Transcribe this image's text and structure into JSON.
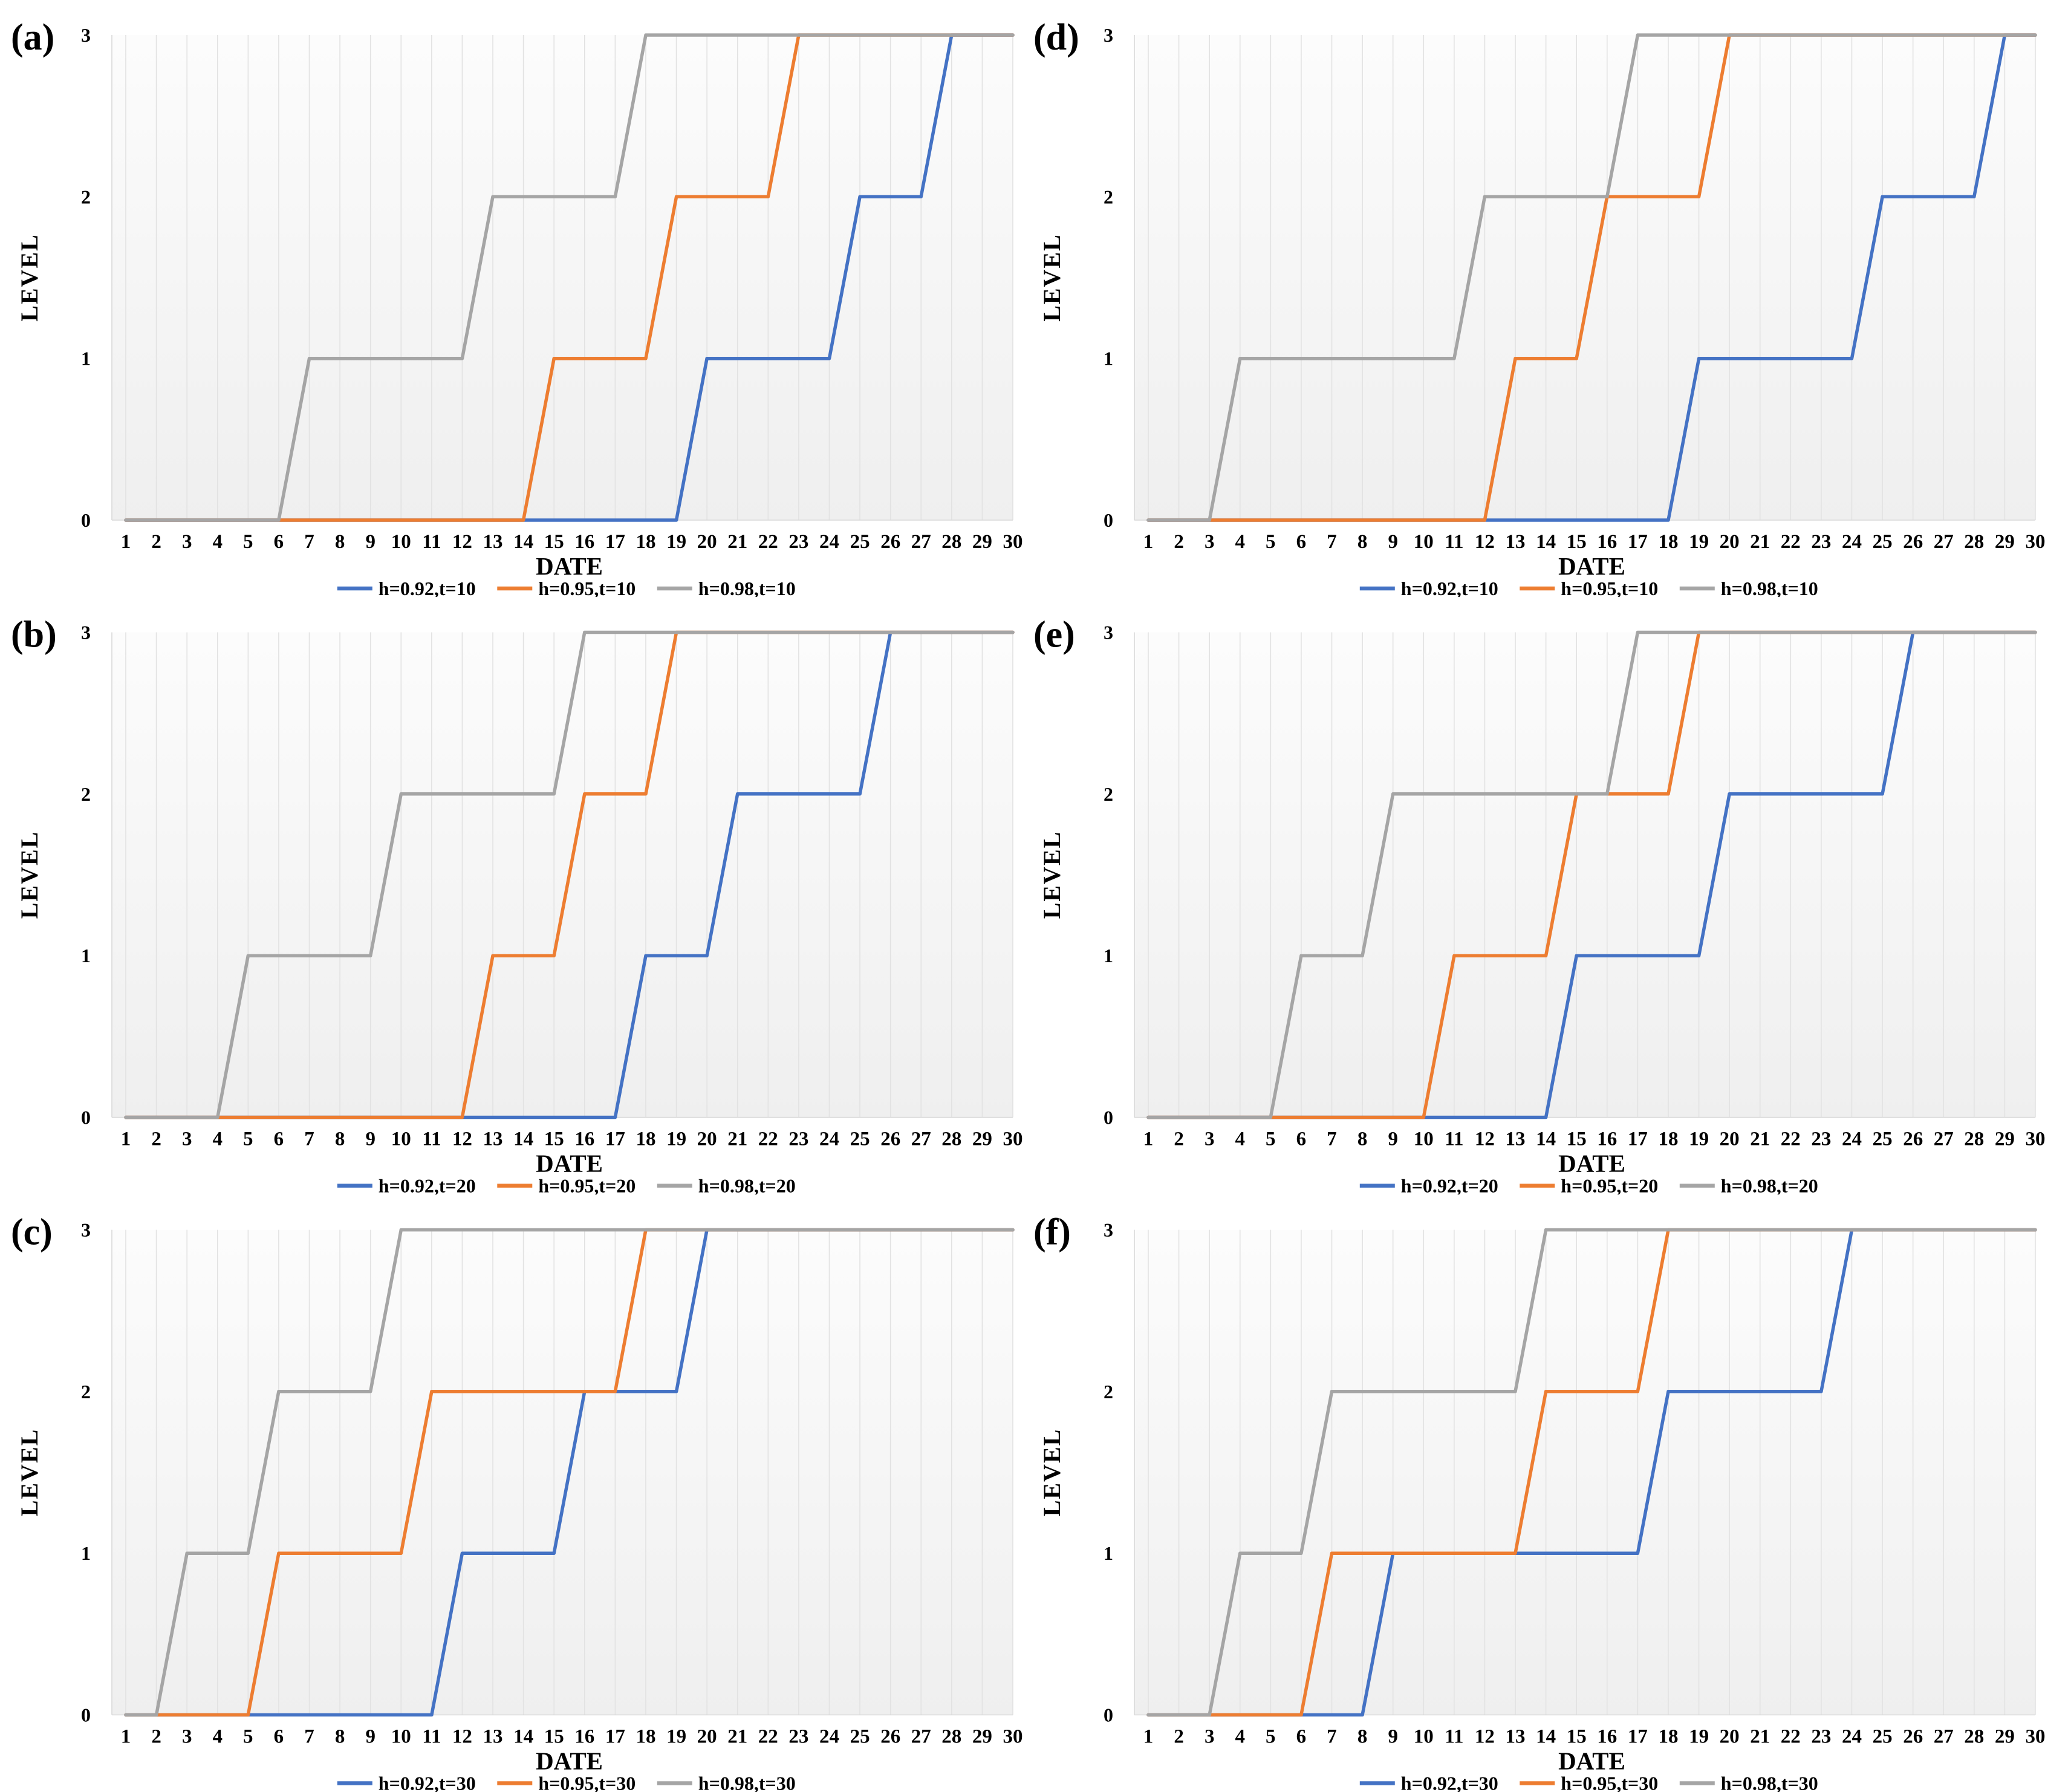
{
  "figure_title": "",
  "styles": {
    "series_colors": {
      "blue": "#4472C4",
      "orange": "#ED7D31",
      "gray": "#A5A5A5"
    },
    "plot_bg_top": "#FCFCFC",
    "plot_bg_bottom": "#EFEFEF",
    "gridline_color": "#E2E2E2",
    "axis_border_color": "#D9D9D9",
    "text_color": "#000000"
  },
  "chart_data": [
    {
      "type": "line",
      "panel_label": "(a)",
      "xlabel": "DATE",
      "ylabel": "LEVEL",
      "x_ticks": [
        1,
        2,
        3,
        4,
        5,
        6,
        7,
        8,
        9,
        10,
        11,
        12,
        13,
        14,
        15,
        16,
        17,
        18,
        19,
        20,
        21,
        22,
        23,
        24,
        25,
        26,
        27,
        28,
        29,
        30
      ],
      "y_ticks": [
        0,
        1,
        2,
        3
      ],
      "xlim": [
        1,
        30
      ],
      "ylim": [
        0,
        3
      ],
      "grid": "vertical",
      "legend_position": "bottom",
      "series": [
        {
          "name": "h=0.92,t=10",
          "color": "#4472C4",
          "points": [
            [
              1,
              0
            ],
            [
              19,
              0
            ],
            [
              20,
              1
            ],
            [
              24,
              1
            ],
            [
              25,
              2
            ],
            [
              27,
              2
            ],
            [
              28,
              3
            ],
            [
              30,
              3
            ]
          ]
        },
        {
          "name": "h=0.95,t=10",
          "color": "#ED7D31",
          "points": [
            [
              1,
              0
            ],
            [
              14,
              0
            ],
            [
              15,
              1
            ],
            [
              18,
              1
            ],
            [
              19,
              2
            ],
            [
              22,
              2
            ],
            [
              23,
              3
            ],
            [
              30,
              3
            ]
          ]
        },
        {
          "name": "h=0.98,t=10",
          "color": "#A5A5A5",
          "points": [
            [
              1,
              0
            ],
            [
              6,
              0
            ],
            [
              7,
              1
            ],
            [
              12,
              1
            ],
            [
              13,
              2
            ],
            [
              17,
              2
            ],
            [
              18,
              3
            ],
            [
              30,
              3
            ]
          ]
        }
      ]
    },
    {
      "type": "line",
      "panel_label": "(b)",
      "xlabel": "DATE",
      "ylabel": "LEVEL",
      "x_ticks": [
        1,
        2,
        3,
        4,
        5,
        6,
        7,
        8,
        9,
        10,
        11,
        12,
        13,
        14,
        15,
        16,
        17,
        18,
        19,
        20,
        21,
        22,
        23,
        24,
        25,
        26,
        27,
        28,
        29,
        30
      ],
      "y_ticks": [
        0,
        1,
        2,
        3
      ],
      "xlim": [
        1,
        30
      ],
      "ylim": [
        0,
        3
      ],
      "grid": "vertical",
      "legend_position": "bottom",
      "series": [
        {
          "name": "h=0.92,t=20",
          "color": "#4472C4",
          "points": [
            [
              1,
              0
            ],
            [
              17,
              0
            ],
            [
              18,
              1
            ],
            [
              20,
              1
            ],
            [
              21,
              2
            ],
            [
              25,
              2
            ],
            [
              26,
              3
            ],
            [
              30,
              3
            ]
          ]
        },
        {
          "name": "h=0.95,t=20",
          "color": "#ED7D31",
          "points": [
            [
              1,
              0
            ],
            [
              12,
              0
            ],
            [
              13,
              1
            ],
            [
              15,
              1
            ],
            [
              16,
              2
            ],
            [
              18,
              2
            ],
            [
              19,
              3
            ],
            [
              30,
              3
            ]
          ]
        },
        {
          "name": "h=0.98,t=20",
          "color": "#A5A5A5",
          "points": [
            [
              1,
              0
            ],
            [
              4,
              0
            ],
            [
              5,
              1
            ],
            [
              9,
              1
            ],
            [
              10,
              2
            ],
            [
              15,
              2
            ],
            [
              16,
              3
            ],
            [
              30,
              3
            ]
          ]
        }
      ]
    },
    {
      "type": "line",
      "panel_label": "(c)",
      "xlabel": "DATE",
      "ylabel": "LEVEL",
      "x_ticks": [
        1,
        2,
        3,
        4,
        5,
        6,
        7,
        8,
        9,
        10,
        11,
        12,
        13,
        14,
        15,
        16,
        17,
        18,
        19,
        20,
        21,
        22,
        23,
        24,
        25,
        26,
        27,
        28,
        29,
        30
      ],
      "y_ticks": [
        0,
        1,
        2,
        3
      ],
      "xlim": [
        1,
        30
      ],
      "ylim": [
        0,
        3
      ],
      "grid": "vertical",
      "legend_position": "bottom",
      "series": [
        {
          "name": "h=0.92,t=30",
          "color": "#4472C4",
          "points": [
            [
              1,
              0
            ],
            [
              11,
              0
            ],
            [
              12,
              1
            ],
            [
              15,
              1
            ],
            [
              16,
              2
            ],
            [
              19,
              2
            ],
            [
              20,
              3
            ],
            [
              30,
              3
            ]
          ]
        },
        {
          "name": "h=0.95,t=30",
          "color": "#ED7D31",
          "points": [
            [
              1,
              0
            ],
            [
              5,
              0
            ],
            [
              6,
              1
            ],
            [
              10,
              1
            ],
            [
              11,
              2
            ],
            [
              17,
              2
            ],
            [
              18,
              3
            ],
            [
              30,
              3
            ]
          ]
        },
        {
          "name": "h=0.98,t=30",
          "color": "#A5A5A5",
          "points": [
            [
              1,
              0
            ],
            [
              2,
              0
            ],
            [
              3,
              1
            ],
            [
              5,
              1
            ],
            [
              6,
              2
            ],
            [
              9,
              2
            ],
            [
              10,
              3
            ],
            [
              30,
              3
            ]
          ]
        }
      ]
    },
    {
      "type": "line",
      "panel_label": "(d)",
      "xlabel": "DATE",
      "ylabel": "LEVEL",
      "x_ticks": [
        1,
        2,
        3,
        4,
        5,
        6,
        7,
        8,
        9,
        10,
        11,
        12,
        13,
        14,
        15,
        16,
        17,
        18,
        19,
        20,
        21,
        22,
        23,
        24,
        25,
        26,
        27,
        28,
        29,
        30
      ],
      "y_ticks": [
        0,
        1,
        2,
        3
      ],
      "xlim": [
        1,
        30
      ],
      "ylim": [
        0,
        3
      ],
      "grid": "vertical",
      "legend_position": "bottom",
      "series": [
        {
          "name": "h=0.92,t=10",
          "color": "#4472C4",
          "points": [
            [
              1,
              0
            ],
            [
              18,
              0
            ],
            [
              19,
              1
            ],
            [
              24,
              1
            ],
            [
              25,
              2
            ],
            [
              28,
              2
            ],
            [
              29,
              3
            ],
            [
              30,
              3
            ]
          ]
        },
        {
          "name": "h=0.95,t=10",
          "color": "#ED7D31",
          "points": [
            [
              1,
              0
            ],
            [
              12,
              0
            ],
            [
              13,
              1
            ],
            [
              15,
              1
            ],
            [
              16,
              2
            ],
            [
              19,
              2
            ],
            [
              20,
              3
            ],
            [
              30,
              3
            ]
          ]
        },
        {
          "name": "h=0.98,t=10",
          "color": "#A5A5A5",
          "points": [
            [
              1,
              0
            ],
            [
              3,
              0
            ],
            [
              4,
              1
            ],
            [
              11,
              1
            ],
            [
              12,
              2
            ],
            [
              16,
              2
            ],
            [
              17,
              3
            ],
            [
              30,
              3
            ]
          ]
        }
      ]
    },
    {
      "type": "line",
      "panel_label": "(e)",
      "xlabel": "DATE",
      "ylabel": "LEVEL",
      "x_ticks": [
        1,
        2,
        3,
        4,
        5,
        6,
        7,
        8,
        9,
        10,
        11,
        12,
        13,
        14,
        15,
        16,
        17,
        18,
        19,
        20,
        21,
        22,
        23,
        24,
        25,
        26,
        27,
        28,
        29,
        30
      ],
      "y_ticks": [
        0,
        1,
        2,
        3
      ],
      "xlim": [
        1,
        30
      ],
      "ylim": [
        0,
        3
      ],
      "grid": "vertical",
      "legend_position": "bottom",
      "series": [
        {
          "name": "h=0.92,t=20",
          "color": "#4472C4",
          "points": [
            [
              1,
              0
            ],
            [
              14,
              0
            ],
            [
              15,
              1
            ],
            [
              19,
              1
            ],
            [
              20,
              2
            ],
            [
              25,
              2
            ],
            [
              26,
              3
            ],
            [
              30,
              3
            ]
          ]
        },
        {
          "name": "h=0.95,t=20",
          "color": "#ED7D31",
          "points": [
            [
              1,
              0
            ],
            [
              10,
              0
            ],
            [
              11,
              1
            ],
            [
              14,
              1
            ],
            [
              15,
              2
            ],
            [
              18,
              2
            ],
            [
              19,
              3
            ],
            [
              30,
              3
            ]
          ]
        },
        {
          "name": "h=0.98,t=20",
          "color": "#A5A5A5",
          "points": [
            [
              1,
              0
            ],
            [
              5,
              0
            ],
            [
              6,
              1
            ],
            [
              8,
              1
            ],
            [
              9,
              2
            ],
            [
              16,
              2
            ],
            [
              17,
              3
            ],
            [
              30,
              3
            ]
          ]
        }
      ]
    },
    {
      "type": "line",
      "panel_label": "(f)",
      "xlabel": "DATE",
      "ylabel": "LEVEL",
      "x_ticks": [
        1,
        2,
        3,
        4,
        5,
        6,
        7,
        8,
        9,
        10,
        11,
        12,
        13,
        14,
        15,
        16,
        17,
        18,
        19,
        20,
        21,
        22,
        23,
        24,
        25,
        26,
        27,
        28,
        29,
        30
      ],
      "y_ticks": [
        0,
        1,
        2,
        3
      ],
      "xlim": [
        1,
        30
      ],
      "ylim": [
        0,
        3
      ],
      "grid": "vertical",
      "legend_position": "bottom",
      "series": [
        {
          "name": "h=0.92,t=30",
          "color": "#4472C4",
          "points": [
            [
              1,
              0
            ],
            [
              8,
              0
            ],
            [
              9,
              1
            ],
            [
              17,
              1
            ],
            [
              18,
              2
            ],
            [
              23,
              2
            ],
            [
              24,
              3
            ],
            [
              30,
              3
            ]
          ]
        },
        {
          "name": "h=0.95,t=30",
          "color": "#ED7D31",
          "points": [
            [
              1,
              0
            ],
            [
              6,
              0
            ],
            [
              7,
              1
            ],
            [
              13,
              1
            ],
            [
              14,
              2
            ],
            [
              17,
              2
            ],
            [
              18,
              3
            ],
            [
              30,
              3
            ]
          ]
        },
        {
          "name": "h=0.98,t=30",
          "color": "#A5A5A5",
          "points": [
            [
              1,
              0
            ],
            [
              3,
              0
            ],
            [
              4,
              1
            ],
            [
              6,
              1
            ],
            [
              7,
              2
            ],
            [
              13,
              2
            ],
            [
              14,
              3
            ],
            [
              30,
              3
            ]
          ]
        }
      ]
    }
  ]
}
